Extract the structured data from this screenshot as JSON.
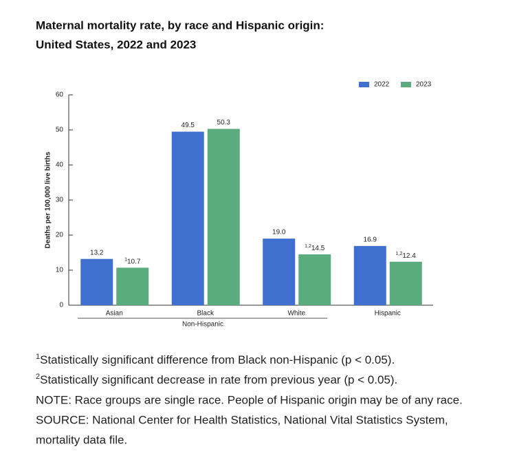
{
  "chart_data": {
    "type": "bar",
    "title": "Maternal mortality rate, by race and Hispanic origin:",
    "subtitle": "United States, 2022 and 2023",
    "y_label": "Deaths per 100,000 live births",
    "categories": [
      "Asian",
      "Black",
      "White",
      "Hispanic"
    ],
    "group_label": "Non-Hispanic",
    "series": [
      {
        "name": "2022",
        "color": "#3f70cf",
        "values": [
          13.2,
          49.5,
          19.0,
          16.9
        ],
        "value_labels": [
          "13.2",
          "49.5",
          "19.0",
          "16.9"
        ]
      },
      {
        "name": "2023",
        "color": "#5aab7e",
        "values": [
          10.7,
          50.3,
          14.5,
          12.4
        ],
        "value_labels": [
          "10.7",
          "50.3",
          "14.5",
          "12.4"
        ],
        "value_label_notes": [
          "1",
          null,
          "1,2",
          "1,2"
        ]
      }
    ],
    "ylim": [
      0,
      60
    ],
    "yticks": [
      0,
      10,
      20,
      30,
      40,
      50,
      60
    ],
    "legend": "top-right",
    "footnotes": [
      {
        "marker": "1",
        "text": "Statistically significant difference from Black non-Hispanic (p < 0.05)."
      },
      {
        "marker": "2",
        "text": "Statistically significant decrease in rate from previous year (p < 0.05)."
      }
    ],
    "note": "NOTE: Race groups are single race. People of Hispanic origin may be of any race.",
    "source": [
      "SOURCE: National Center for Health Statistics, National Vital Statistics System,",
      "mortality data file."
    ]
  }
}
